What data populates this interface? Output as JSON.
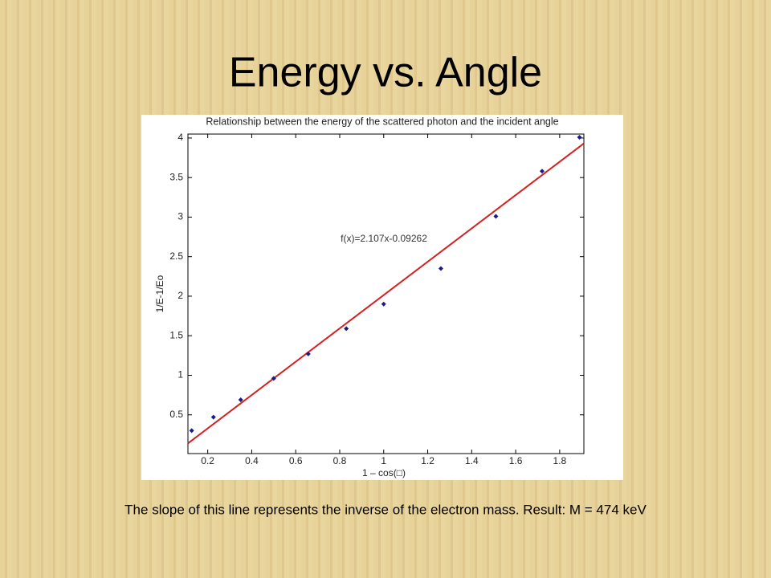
{
  "slide": {
    "title": "Energy vs. Angle",
    "caption": "The slope of this line represents the inverse of the electron mass. Result: M = 474 keV"
  },
  "chart_data": {
    "type": "scatter",
    "title": "Relationship between the energy of the scattered photon and the incident angle",
    "x_label": "1 – cos(□)",
    "y_label": "1/E-1/Eo",
    "annotation": "f(x)=2.107x-0.09262",
    "x": [
      0.127,
      0.226,
      0.35,
      0.5,
      0.657,
      0.83,
      1.0,
      1.26,
      1.51,
      1.72,
      1.89
    ],
    "series": [
      {
        "color": "#1a1a8c",
        "values": [
          0.3,
          0.47,
          0.69,
          0.96,
          1.27,
          1.59,
          1.9,
          2.35,
          3.01,
          3.58,
          4.01
        ]
      }
    ],
    "fit_line": {
      "slope": 2.107,
      "intercept": -0.09262,
      "color": "#d42020"
    },
    "xlim": [
      0.11,
      1.91
    ],
    "ylim": [
      0.01,
      4.05
    ],
    "xticks": [
      0.2,
      0.4,
      0.6,
      0.8,
      1,
      1.2,
      1.4,
      1.6,
      1.8
    ],
    "yticks": [
      0.5,
      1,
      1.5,
      2,
      2.5,
      3,
      3.5,
      4
    ]
  }
}
